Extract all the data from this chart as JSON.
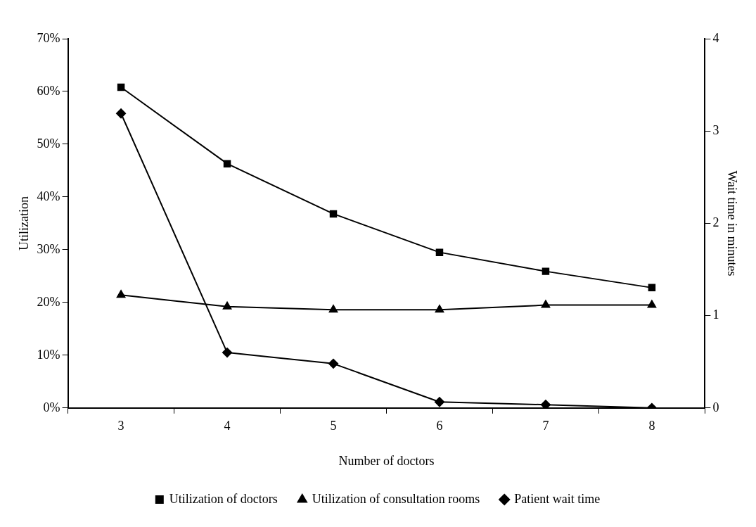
{
  "chart_data": {
    "type": "line",
    "xlabel": "Number of doctors",
    "ylabel": "Utilization",
    "y2label": "Wait time in minutes",
    "categories": [
      "3",
      "4",
      "5",
      "6",
      "7",
      "8"
    ],
    "series": [
      {
        "name": "Utilization of doctors",
        "color": "#000000",
        "marker": "square",
        "values": [
          60.8,
          46.3,
          36.8,
          29.5,
          25.9,
          22.8
        ]
      },
      {
        "name": "Utilization of consultation rooms",
        "color": "#000000",
        "marker": "triangle",
        "values": [
          21.4,
          19.2,
          18.6,
          18.6,
          19.5,
          19.5
        ]
      },
      {
        "name": "Patient wait time",
        "color": "#000000",
        "marker": "diamond",
        "axis": "y2",
        "values": [
          3.19,
          0.6,
          0.48,
          0.065,
          0.035,
          0
        ]
      }
    ],
    "ylim": [
      0,
      70
    ],
    "yticks": [
      {
        "value": 0,
        "label": "0%"
      },
      {
        "value": 10,
        "label": "10%"
      },
      {
        "value": 20,
        "label": "20%"
      },
      {
        "value": 30,
        "label": "30%"
      },
      {
        "value": 40,
        "label": "40%"
      },
      {
        "value": 50,
        "label": "50%"
      },
      {
        "value": 60,
        "label": "60%"
      },
      {
        "value": 70,
        "label": "70%"
      }
    ],
    "y2lim": [
      0,
      4
    ],
    "y2ticks": [
      0,
      1,
      2,
      3,
      4
    ],
    "grid": false,
    "legend": "bottom",
    "line_style": "solid"
  }
}
